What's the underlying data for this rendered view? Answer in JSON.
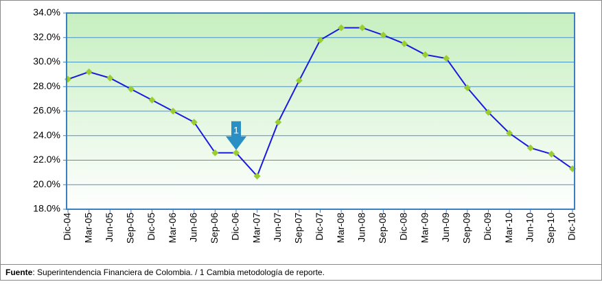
{
  "chart_data": {
    "type": "line",
    "categories": [
      "Dic-04",
      "Mar-05",
      "Jun-05",
      "Sep-05",
      "Dic-05",
      "Mar-06",
      "Jun-06",
      "Sep-06",
      "Dic-06",
      "Mar-07",
      "Jun-07",
      "Sep-07",
      "Dic-07",
      "Mar-08",
      "Jun-08",
      "Sep-08",
      "Dic-08",
      "Mar-09",
      "Jun-09",
      "Sep-09",
      "Dic-09",
      "Mar-10",
      "Jun-10",
      "Sep-10",
      "Dic-10"
    ],
    "series": [
      {
        "color": "#1a1adf",
        "marker_color": "#9acd32",
        "values": [
          28.6,
          29.2,
          28.7,
          27.8,
          26.9,
          26.0,
          25.1,
          22.6,
          22.6,
          20.7,
          25.1,
          28.5,
          31.8,
          32.8,
          32.8,
          32.2,
          31.5,
          30.6,
          30.3,
          27.9,
          25.9,
          24.2,
          23.0,
          22.5,
          21.3
        ]
      }
    ],
    "ylim": [
      18,
      34
    ],
    "yticks": [
      {
        "value": 18,
        "label": "18.0%"
      },
      {
        "value": 20,
        "label": "20.0%"
      },
      {
        "value": 22,
        "label": "22.0%"
      },
      {
        "value": 24,
        "label": "24.0%"
      },
      {
        "value": 26,
        "label": "26.0%"
      },
      {
        "value": 28,
        "label": "28.0%"
      },
      {
        "value": 30,
        "label": "30.0%"
      },
      {
        "value": 32,
        "label": "32.0%"
      },
      {
        "value": 34,
        "label": "34.0%"
      }
    ],
    "grid": true,
    "annotation": {
      "text": "1",
      "category_index": 8
    },
    "source_label": "Fuente",
    "source_text": ": Superintendencia Financiera de Colombia. / 1 Cambia metodología de reporte."
  }
}
